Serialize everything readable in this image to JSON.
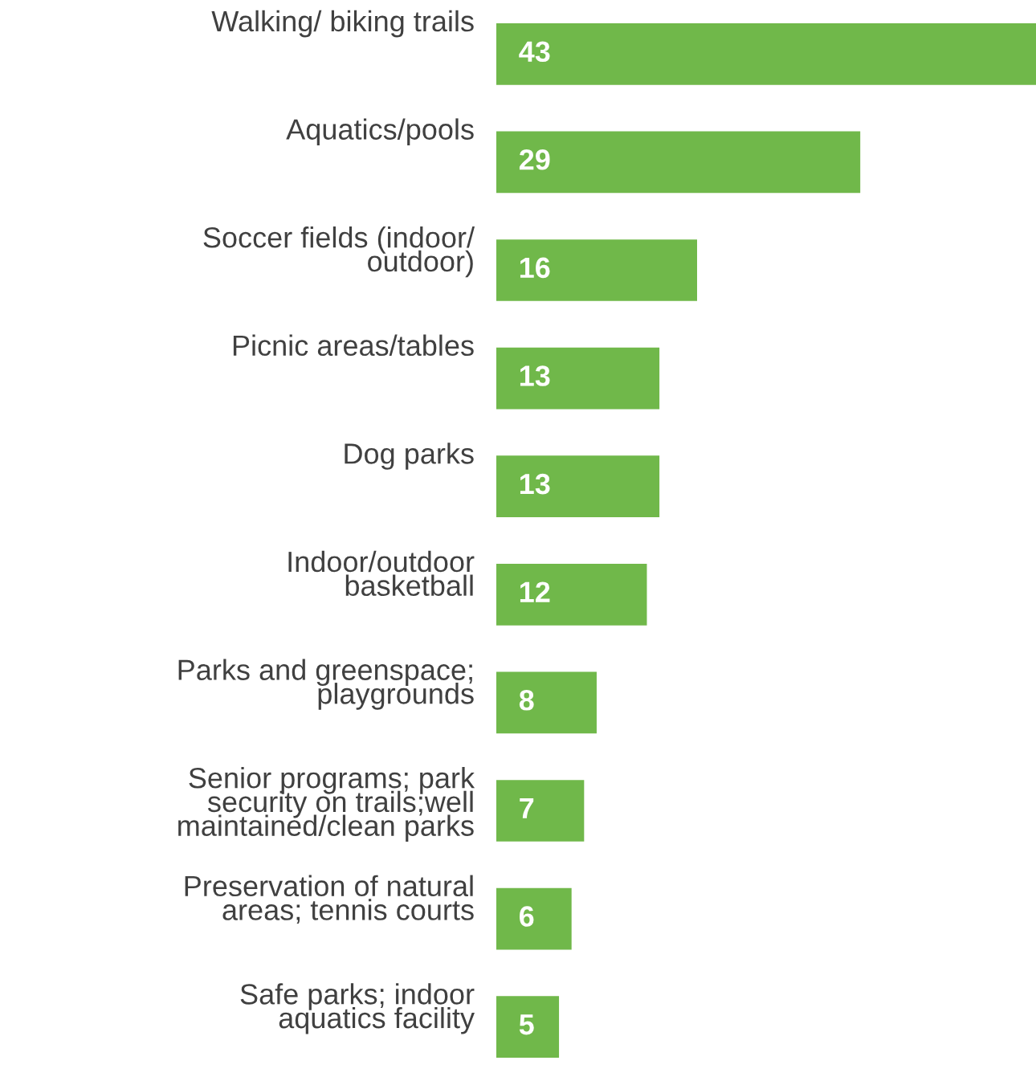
{
  "chart_data": {
    "type": "bar",
    "orientation": "horizontal",
    "categories": [
      "Walking/ biking trails",
      "Aquatics/pools",
      "Soccer fields (indoor/\noutdoor)",
      "Picnic areas/tables",
      "Dog parks",
      "Indoor/outdoor\nbasketball",
      "Parks and greenspace;\nplaygrounds",
      "Senior programs; park\nsecurity on trails;well\nmaintained/clean parks",
      "Preservation of natural\nareas; tennis courts",
      "Safe parks; indoor\naquatics facility"
    ],
    "values": [
      43,
      29,
      16,
      13,
      13,
      12,
      8,
      7,
      6,
      5
    ],
    "color": "#70b84a",
    "data_labels": true
  }
}
